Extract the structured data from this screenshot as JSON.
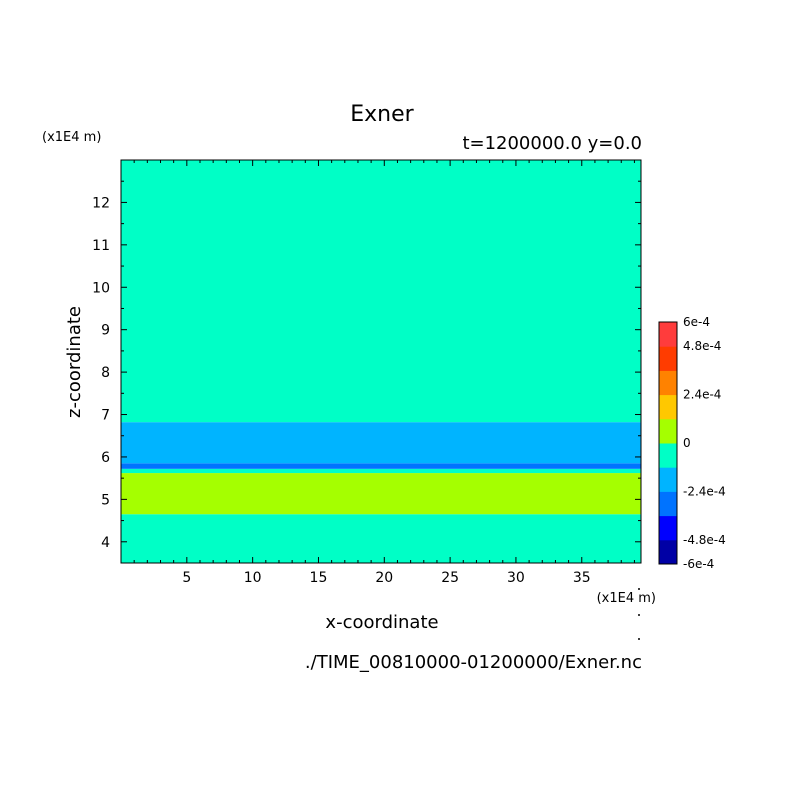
{
  "chart_data": {
    "type": "heatmap",
    "title": "Exner",
    "subtitle": "t=1200000.0 y=0.0",
    "xlabel": "x-coordinate",
    "ylabel": "z-coordinate",
    "x_unit": "(x1E4 m)",
    "y_unit": "(x1E4 m)",
    "footer": "./TIME_00810000-01200000/Exner.nc",
    "xlim": [
      0,
      39.5
    ],
    "ylim": [
      3.5,
      13
    ],
    "x_ticks": [
      5,
      10,
      15,
      20,
      25,
      30,
      35
    ],
    "y_ticks": [
      4,
      5,
      6,
      7,
      8,
      9,
      10,
      11,
      12
    ],
    "bands": [
      {
        "z_from": 3.5,
        "z_to": 4.65,
        "level": "0 to 1.2e-4",
        "color": "#00ffc6"
      },
      {
        "z_from": 4.65,
        "z_to": 5.62,
        "level": "1.2e-4 to 2.4e-4",
        "color": "#a5ff00"
      },
      {
        "z_from": 5.62,
        "z_to": 5.72,
        "level": "0 to 1.2e-4",
        "color": "#00ffc6"
      },
      {
        "z_from": 5.72,
        "z_to": 5.85,
        "level": "-3.6e-4 to -2.4e-4",
        "color": "#0073ff"
      },
      {
        "z_from": 5.85,
        "z_to": 6.82,
        "level": "-2.4e-4 to -1.2e-4",
        "color": "#00b4ff"
      },
      {
        "z_from": 6.82,
        "z_to": 13,
        "level": "0 to 1.2e-4",
        "color": "#00ffc6"
      }
    ],
    "colorbar": {
      "colors": [
        "#0000a5",
        "#0000ff",
        "#0073ff",
        "#00b4ff",
        "#00ffc6",
        "#a5ff00",
        "#ffc800",
        "#ff8200",
        "#ff3c00",
        "#ff3c3c"
      ],
      "labels": [
        {
          "value": -0.0006,
          "text": "-6e-4"
        },
        {
          "value": -0.00048,
          "text": "-4.8e-4"
        },
        {
          "value": -0.00024,
          "text": "-2.4e-4"
        },
        {
          "value": 0,
          "text": "0"
        },
        {
          "value": 0.00024,
          "text": "2.4e-4"
        },
        {
          "value": 0.00048,
          "text": "4.8e-4"
        },
        {
          "value": 0.0006,
          "text": "6e-4"
        }
      ],
      "min": -0.0006,
      "max": 0.0006
    }
  }
}
